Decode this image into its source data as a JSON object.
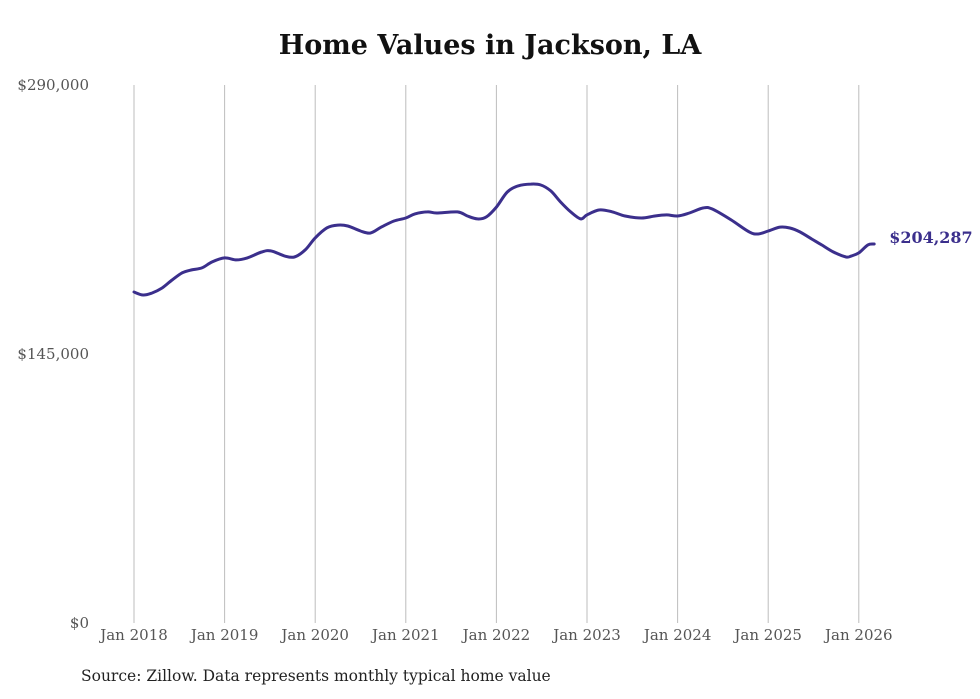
{
  "chart_data": {
    "type": "line",
    "title": "Home Values in Jackson, LA",
    "xlabel": "",
    "ylabel": "",
    "ylim": [
      0,
      290000
    ],
    "yticks": [
      {
        "value": 0,
        "label": "$0"
      },
      {
        "value": 145000,
        "label": "$145,000"
      },
      {
        "value": 290000,
        "label": "$290,000"
      }
    ],
    "xticks": [
      {
        "value": 2018,
        "label": "Jan 2018"
      },
      {
        "value": 2019,
        "label": "Jan 2019"
      },
      {
        "value": 2020,
        "label": "Jan 2020"
      },
      {
        "value": 2021,
        "label": "Jan 2021"
      },
      {
        "value": 2022,
        "label": "Jan 2022"
      },
      {
        "value": 2023,
        "label": "Jan 2023"
      },
      {
        "value": 2024,
        "label": "Jan 2024"
      },
      {
        "value": 2025,
        "label": "Jan 2025"
      },
      {
        "value": 2026,
        "label": "Jan 2026"
      }
    ],
    "xlim": [
      2018,
      2026.2
    ],
    "grid": "vertical",
    "legend": "none",
    "series": [
      {
        "name": "Jackson, LA",
        "color": "#3b2f8c",
        "end_label": "$204,287",
        "points": [
          [
            2018.0,
            178400
          ],
          [
            2018.1,
            176800
          ],
          [
            2018.2,
            177900
          ],
          [
            2018.31,
            180600
          ],
          [
            2018.42,
            184900
          ],
          [
            2018.53,
            188700
          ],
          [
            2018.63,
            190300
          ],
          [
            2018.75,
            191400
          ],
          [
            2018.86,
            194600
          ],
          [
            2019.0,
            196800
          ],
          [
            2019.13,
            195700
          ],
          [
            2019.25,
            196800
          ],
          [
            2019.41,
            200000
          ],
          [
            2019.51,
            200600
          ],
          [
            2019.66,
            197900
          ],
          [
            2019.77,
            197300
          ],
          [
            2019.89,
            201100
          ],
          [
            2020.0,
            207600
          ],
          [
            2020.13,
            213000
          ],
          [
            2020.25,
            214500
          ],
          [
            2020.36,
            214000
          ],
          [
            2020.5,
            211300
          ],
          [
            2020.61,
            210200
          ],
          [
            2020.73,
            213400
          ],
          [
            2020.87,
            216700
          ],
          [
            2021.0,
            218300
          ],
          [
            2021.1,
            220500
          ],
          [
            2021.24,
            221600
          ],
          [
            2021.34,
            221000
          ],
          [
            2021.57,
            221600
          ],
          [
            2021.68,
            219400
          ],
          [
            2021.79,
            217800
          ],
          [
            2021.89,
            218900
          ],
          [
            2022.0,
            224200
          ],
          [
            2022.12,
            232300
          ],
          [
            2022.24,
            235600
          ],
          [
            2022.38,
            236600
          ],
          [
            2022.49,
            236100
          ],
          [
            2022.6,
            232900
          ],
          [
            2022.71,
            226900
          ],
          [
            2022.82,
            221600
          ],
          [
            2022.93,
            217800
          ],
          [
            2023.0,
            220000
          ],
          [
            2023.14,
            222700
          ],
          [
            2023.28,
            221600
          ],
          [
            2023.42,
            219400
          ],
          [
            2023.6,
            218300
          ],
          [
            2023.75,
            219400
          ],
          [
            2023.88,
            220000
          ],
          [
            2024.0,
            219400
          ],
          [
            2024.13,
            221000
          ],
          [
            2024.28,
            223700
          ],
          [
            2024.38,
            223200
          ],
          [
            2024.59,
            217300
          ],
          [
            2024.79,
            210800
          ],
          [
            2024.89,
            209700
          ],
          [
            2025.0,
            211300
          ],
          [
            2025.13,
            213400
          ],
          [
            2025.24,
            212900
          ],
          [
            2025.35,
            210800
          ],
          [
            2025.48,
            207000
          ],
          [
            2025.59,
            203800
          ],
          [
            2025.72,
            200000
          ],
          [
            2025.86,
            197300
          ],
          [
            2025.92,
            197900
          ],
          [
            2026.0,
            199500
          ],
          [
            2026.1,
            203800
          ],
          [
            2026.17,
            204287
          ]
        ]
      }
    ]
  },
  "footer": {
    "source": "Source: Zillow. Data represents monthly typical home value"
  }
}
